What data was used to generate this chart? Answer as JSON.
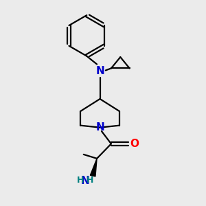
{
  "bg_color": "#ebebeb",
  "bond_color": "#000000",
  "N_color": "#0000cc",
  "O_color": "#ff0000",
  "NH2_color": "#008080",
  "line_width": 1.6,
  "figsize": [
    3.0,
    3.0
  ],
  "dpi": 100,
  "xlim": [
    0,
    10
  ],
  "ylim": [
    0,
    10
  ]
}
